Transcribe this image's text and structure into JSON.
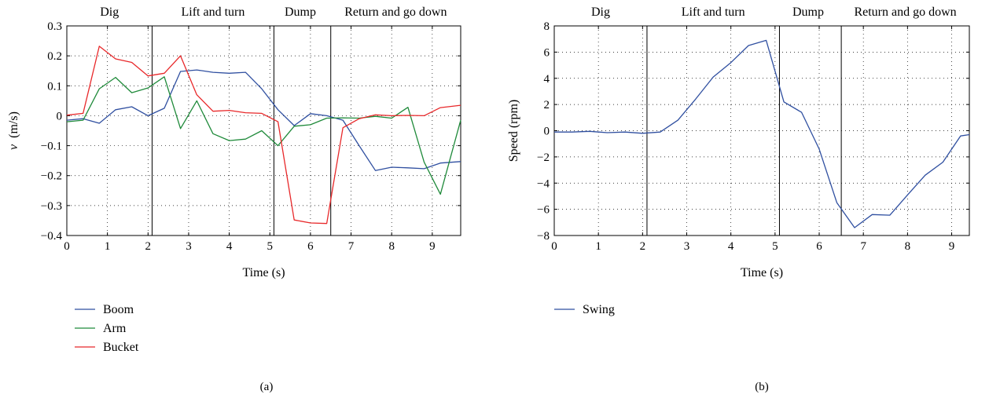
{
  "chart_data": [
    {
      "type": "line",
      "panel_label": "(a)",
      "xlabel": "Time (s)",
      "ylabel_symbol": "v",
      "ylabel_unit": "(m/s)",
      "xlim": [
        0,
        9.7
      ],
      "ylim": [
        -0.4,
        0.3
      ],
      "xticks": [
        0,
        1,
        2,
        3,
        4,
        5,
        6,
        7,
        8,
        9
      ],
      "xtick_labels": [
        "0",
        "1",
        "2",
        "3",
        "4",
        "5",
        "6",
        "7",
        "8",
        "9"
      ],
      "yticks": [
        -0.4,
        -0.3,
        -0.2,
        -0.1,
        0,
        0.1,
        0.2,
        0.3
      ],
      "ytick_labels": [
        "−0.4",
        "−0.3",
        "−0.2",
        "−0.1",
        "0",
        "0.1",
        "0.2",
        "0.3"
      ],
      "grid": "dotted",
      "phase_dividers": [
        2.1,
        5.1,
        6.5
      ],
      "phases": [
        {
          "label": "Dig",
          "x": 1.05
        },
        {
          "label": "Lift and turn",
          "x": 3.6
        },
        {
          "label": "Dump",
          "x": 5.75
        },
        {
          "label": "Return and go down",
          "x": 8.1
        }
      ],
      "legend_position": "below",
      "series": [
        {
          "name": "Boom",
          "color": "#2f4fa0",
          "x": [
            0,
            0.4,
            0.8,
            1.2,
            1.6,
            2.0,
            2.4,
            2.8,
            3.2,
            3.6,
            4.0,
            4.4,
            4.8,
            5.2,
            5.6,
            6.0,
            6.4,
            6.8,
            7.2,
            7.6,
            8.0,
            8.4,
            8.8,
            9.2,
            9.7
          ],
          "y": [
            -0.015,
            -0.01,
            -0.025,
            0.02,
            0.03,
            0.0,
            0.025,
            0.148,
            0.153,
            0.145,
            0.142,
            0.145,
            0.09,
            0.02,
            -0.033,
            0.007,
            0.0,
            -0.015,
            -0.1,
            -0.183,
            -0.172,
            -0.174,
            -0.177,
            -0.158,
            -0.153
          ]
        },
        {
          "name": "Arm",
          "color": "#1f8a3a",
          "x": [
            0,
            0.4,
            0.8,
            1.2,
            1.6,
            2.0,
            2.4,
            2.8,
            3.2,
            3.6,
            4.0,
            4.4,
            4.8,
            5.2,
            5.6,
            6.0,
            6.4,
            6.8,
            7.2,
            7.6,
            8.0,
            8.4,
            8.8,
            9.2,
            9.7
          ],
          "y": [
            -0.02,
            -0.015,
            0.09,
            0.128,
            0.077,
            0.093,
            0.13,
            -0.043,
            0.05,
            -0.06,
            -0.083,
            -0.078,
            -0.05,
            -0.1,
            -0.035,
            -0.03,
            -0.008,
            -0.007,
            -0.008,
            -0.002,
            -0.008,
            0.028,
            -0.155,
            -0.262,
            -0.015
          ]
        },
        {
          "name": "Bucket",
          "color": "#e8282a",
          "x": [
            0,
            0.4,
            0.8,
            1.2,
            1.6,
            2.0,
            2.4,
            2.8,
            3.2,
            3.6,
            4.0,
            4.4,
            4.8,
            5.2,
            5.6,
            6.0,
            6.4,
            6.8,
            7.2,
            7.6,
            8.0,
            8.4,
            8.8,
            9.2,
            9.7
          ],
          "y": [
            0.002,
            0.008,
            0.232,
            0.19,
            0.178,
            0.133,
            0.142,
            0.2,
            0.07,
            0.015,
            0.018,
            0.01,
            0.008,
            -0.02,
            -0.348,
            -0.358,
            -0.36,
            -0.04,
            -0.01,
            0.003,
            0.0,
            0.001,
            0.0,
            0.027,
            0.035
          ]
        }
      ]
    },
    {
      "type": "line",
      "panel_label": "(b)",
      "xlabel": "Time (s)",
      "ylabel": "Speed (rpm)",
      "xlim": [
        0,
        9.4
      ],
      "ylim": [
        -8,
        8
      ],
      "xticks": [
        0,
        1,
        2,
        3,
        4,
        5,
        6,
        7,
        8,
        9
      ],
      "xtick_labels": [
        "0",
        "1",
        "2",
        "3",
        "4",
        "5",
        "6",
        "7",
        "8",
        "9"
      ],
      "yticks": [
        -8,
        -6,
        -4,
        -2,
        0,
        2,
        4,
        6,
        8
      ],
      "ytick_labels": [
        "−8",
        "−6",
        "−4",
        "−2",
        "0",
        "2",
        "4",
        "6",
        "8"
      ],
      "grid": "dotted",
      "phase_dividers": [
        2.1,
        5.1,
        6.5
      ],
      "phases": [
        {
          "label": "Dig",
          "x": 1.05
        },
        {
          "label": "Lift and turn",
          "x": 3.6
        },
        {
          "label": "Dump",
          "x": 5.75
        },
        {
          "label": "Return and go down",
          "x": 7.95
        }
      ],
      "legend_position": "below",
      "series": [
        {
          "name": "Swing",
          "color": "#2f4fa0",
          "x": [
            0,
            0.4,
            0.8,
            1.2,
            1.6,
            2.0,
            2.4,
            2.8,
            3.2,
            3.6,
            4.0,
            4.4,
            4.8,
            5.2,
            5.6,
            6.0,
            6.4,
            6.8,
            7.2,
            7.6,
            8.0,
            8.4,
            8.8,
            9.2,
            9.4
          ],
          "y": [
            -0.1,
            -0.1,
            -0.05,
            -0.15,
            -0.1,
            -0.2,
            -0.1,
            0.8,
            2.4,
            4.1,
            5.2,
            6.5,
            6.9,
            2.2,
            1.4,
            -1.4,
            -5.5,
            -7.4,
            -6.4,
            -6.45,
            -4.9,
            -3.4,
            -2.4,
            -0.4,
            -0.3
          ]
        }
      ]
    }
  ]
}
